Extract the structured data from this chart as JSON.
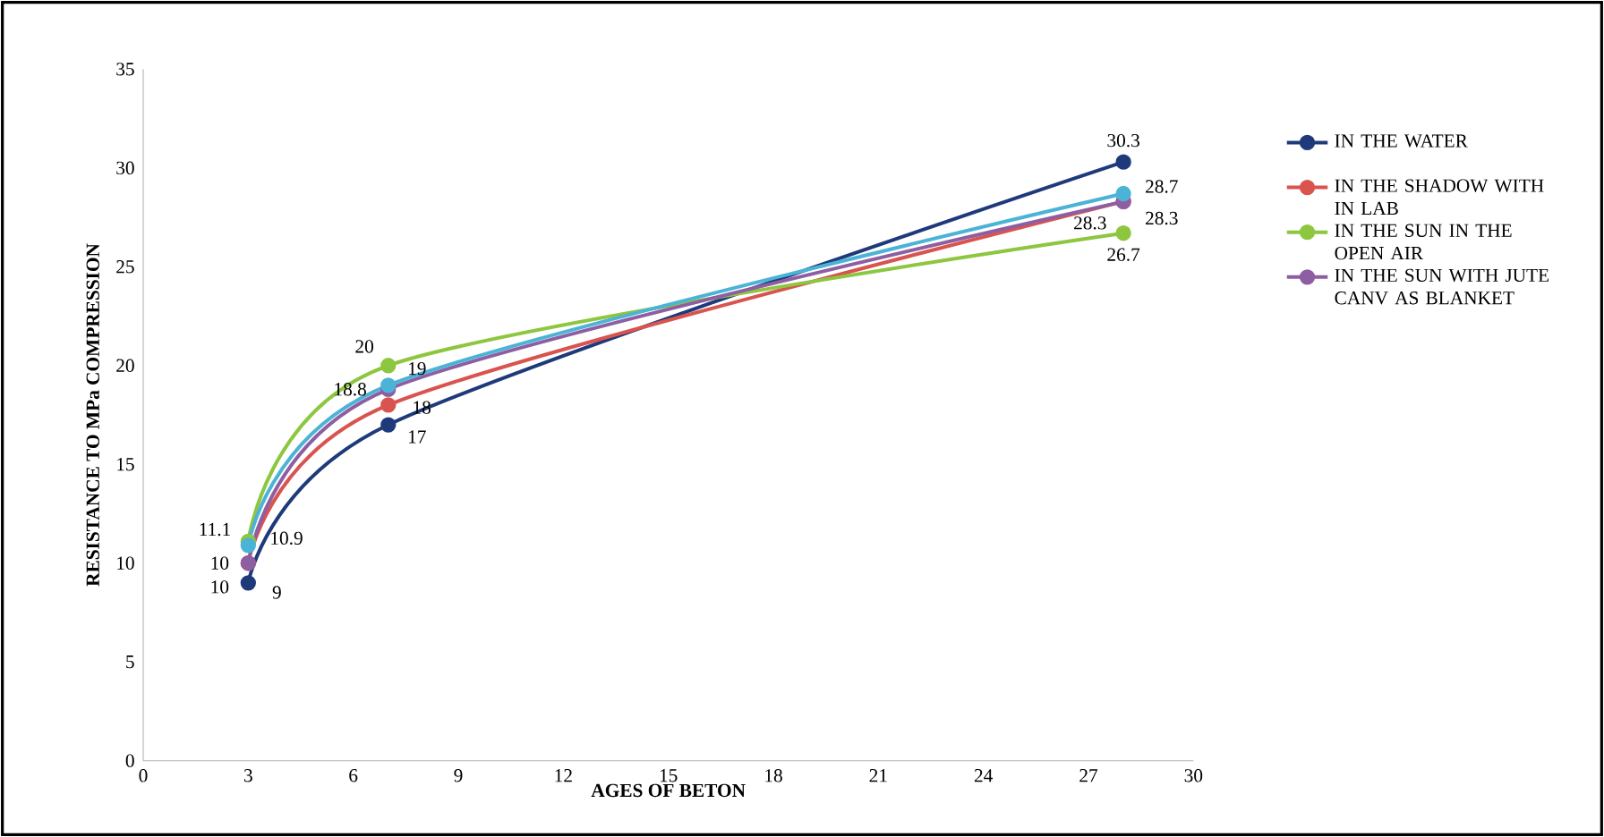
{
  "chart_data": {
    "type": "line",
    "xlabel": "AGES OF BETON",
    "ylabel": "RESISTANCE TO MPa COMPRESSION",
    "x": [
      3,
      7,
      28
    ],
    "xlim": [
      0,
      30
    ],
    "xticks": [
      0,
      3,
      6,
      9,
      12,
      15,
      18,
      21,
      24,
      27,
      30
    ],
    "ylim": [
      0,
      35
    ],
    "yticks": [
      0,
      5,
      10,
      15,
      20,
      25,
      30,
      35
    ],
    "legend": "right",
    "marker": "circle",
    "data_labels": true,
    "series": [
      {
        "name": "IN THE WATER",
        "color": "#1f3a7a",
        "values": [
          9,
          17,
          30.3
        ]
      },
      {
        "name": "IN THE SHADOW WITH IN LAB",
        "color": "#d9534f",
        "values": [
          10,
          18,
          28.3
        ]
      },
      {
        "name": "IN THE SUN IN THE OPEN AIR",
        "color": "#8dc63f",
        "values": [
          11.1,
          20,
          26.7
        ]
      },
      {
        "name": "IN THE SUN WITH JUTE CANV AS BLANKET",
        "color": "#8e5ea2",
        "values": [
          10,
          18.8,
          28.3
        ]
      },
      {
        "color": "#4bb3d6",
        "values": [
          10.9,
          19,
          28.7
        ]
      }
    ]
  }
}
